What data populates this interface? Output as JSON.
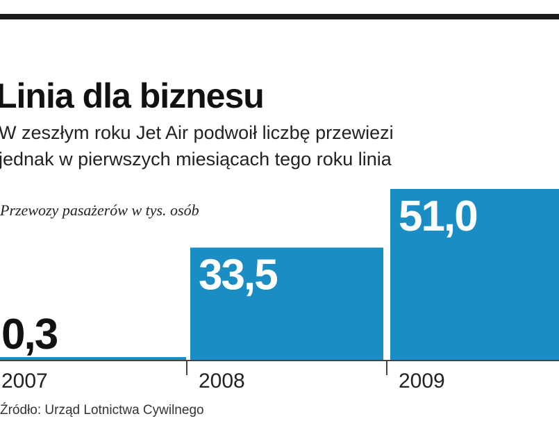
{
  "title": "Linia dla biznesu",
  "lead": [
    "W zeszłym roku Jet Air podwoił liczbę przewiezi",
    "jednak w pierwszych miesiącach tego roku linia"
  ],
  "chart_data": {
    "type": "bar",
    "title": "Linia dla biznesu",
    "ylabel": "Przewozy pasażerów w tys. osób",
    "xlabel": "",
    "categories": [
      "2007",
      "2008",
      "2009"
    ],
    "values": [
      0.3,
      33.5,
      51.0
    ],
    "value_labels": [
      "0,3",
      "33,5",
      "51,0"
    ],
    "bar_color": "#1a8ec4",
    "ylim": [
      0,
      51
    ]
  },
  "source": "Źródło: Urząd Lotnictwa Cywilnego"
}
